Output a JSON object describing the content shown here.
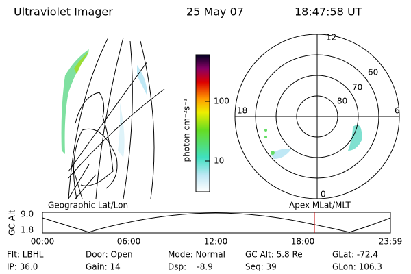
{
  "header": {
    "title": "Ultraviolet Imager",
    "date": "25 May 07",
    "time": "18:47:58 UT"
  },
  "colorbar": {
    "label": "photon cm⁻²s⁻¹",
    "ticks": [
      "100",
      "10"
    ]
  },
  "polar": {
    "mlt": [
      "12",
      "18",
      "6",
      "0"
    ],
    "lat": [
      "60",
      "70",
      "80"
    ]
  },
  "altitude": {
    "left_label": "Geographic Lat/Lon",
    "right_label": "Apex MLat/MLT",
    "y_label": "GC Alt",
    "y_ticks": [
      "9.0",
      "1.8"
    ],
    "x_ticks": [
      "00:00",
      "06:00",
      "12:00",
      "18:00",
      "23:59"
    ]
  },
  "footer": {
    "row1": [
      "Flt: LBHL",
      "Door: Open",
      "Mode: Normal",
      "GC Alt: 5.8 Re",
      "GLat: -72.4"
    ],
    "row2": [
      "IP: 36.0",
      "Gain: 14",
      "Dsp:    -8.9",
      "Seq: 39",
      "GLon: 106.3"
    ]
  }
}
